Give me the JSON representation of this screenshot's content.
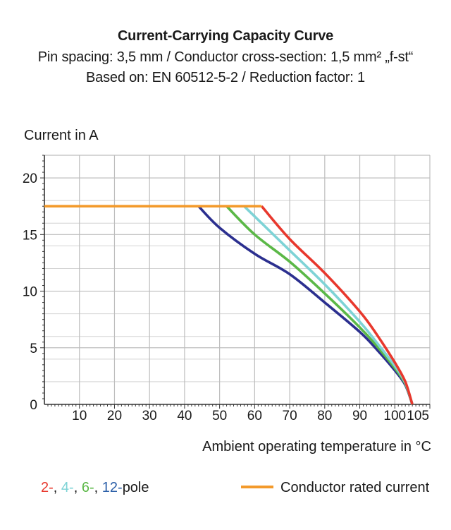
{
  "chart_data": {
    "type": "line",
    "title": "Current-Carrying Capacity Curve",
    "subtitle_1": "Pin spacing: 3,5 mm / Conductor cross-section: 1,5 mm² „f-st“",
    "subtitle_2": "Based on: EN 60512-5-2 / Reduction factor: 1",
    "ylabel": "Current in A",
    "xlabel": "Ambient operating temperature in °C",
    "xlim": [
      0,
      110
    ],
    "ylim": [
      0,
      22
    ],
    "x_ticks": [
      10,
      20,
      30,
      40,
      50,
      60,
      70,
      80,
      90,
      100,
      105
    ],
    "x_tick_labels": [
      "10",
      "20",
      "30",
      "40",
      "50",
      "60",
      "70",
      "80",
      "90",
      "100",
      "105"
    ],
    "y_ticks": [
      0,
      5,
      10,
      15,
      20
    ],
    "y_tick_labels": [
      "0",
      "5",
      "10",
      "15",
      "20"
    ],
    "series": [
      {
        "name": "2-pole",
        "color": "#e8382d",
        "points": [
          [
            62,
            17.5
          ],
          [
            70,
            14.6
          ],
          [
            80,
            11.6
          ],
          [
            90,
            8.2
          ],
          [
            95,
            6.1
          ],
          [
            100,
            3.7
          ],
          [
            103,
            2.0
          ],
          [
            105,
            0
          ]
        ]
      },
      {
        "name": "4-pole",
        "color": "#7ed3d6",
        "points": [
          [
            57,
            17.5
          ],
          [
            70,
            13.6
          ],
          [
            80,
            10.6
          ],
          [
            90,
            7.3
          ],
          [
            95,
            5.4
          ],
          [
            100,
            3.4
          ],
          [
            103,
            1.9
          ],
          [
            105,
            0
          ]
        ]
      },
      {
        "name": "6-pole",
        "color": "#5bb847",
        "points": [
          [
            52,
            17.5
          ],
          [
            60,
            15.0
          ],
          [
            70,
            12.6
          ],
          [
            80,
            9.8
          ],
          [
            90,
            6.8
          ],
          [
            95,
            5.1
          ],
          [
            100,
            3.2
          ],
          [
            103,
            1.8
          ],
          [
            105,
            0
          ]
        ]
      },
      {
        "name": "12-pole",
        "color": "#2b2f8f",
        "points": [
          [
            44,
            17.5
          ],
          [
            50,
            15.6
          ],
          [
            60,
            13.3
          ],
          [
            70,
            11.5
          ],
          [
            80,
            9.0
          ],
          [
            90,
            6.4
          ],
          [
            95,
            4.8
          ],
          [
            100,
            3.0
          ],
          [
            103,
            1.7
          ],
          [
            105,
            0
          ]
        ]
      },
      {
        "name": "Conductor rated current",
        "color": "#f39a2b",
        "points": [
          [
            0,
            17.5
          ],
          [
            62,
            17.5
          ]
        ]
      }
    ],
    "legend": {
      "poles": [
        {
          "label": "2-",
          "color": "#e8382d"
        },
        {
          "label": "4-",
          "color": "#7ed3d6"
        },
        {
          "label": "6-",
          "color": "#5bb847"
        },
        {
          "label": "12",
          "color": "#2b5fa8"
        }
      ],
      "pole_suffix_dash": "-",
      "pole_text": "pole",
      "rated_label": "Conductor rated current"
    }
  }
}
